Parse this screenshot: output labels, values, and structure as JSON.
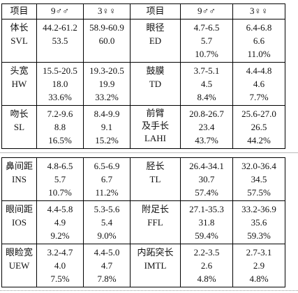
{
  "table": {
    "header": [
      "项目",
      "9♂♂",
      "3♀♀",
      "项目",
      "9♂♂",
      "3♀♀"
    ],
    "blocks": [
      {
        "rows": [
          [
            [
              "体长",
              "SVL"
            ],
            [
              "44.2-61.2",
              "53.5"
            ],
            [
              "58.9-60.9",
              "60.0"
            ],
            [
              "眼径",
              "ED"
            ],
            [
              "4.7-6.5",
              "5.7",
              "10.7%"
            ],
            [
              "6.4-6.8",
              "6.6",
              "11.0%"
            ]
          ],
          [
            [
              "头宽",
              "HW"
            ],
            [
              "15.5-20.5",
              "18.0",
              "33.6%"
            ],
            [
              "19.3-20.5",
              "19.9",
              "33.2%"
            ],
            [
              "鼓膜",
              "TD"
            ],
            [
              "3.7-5.1",
              "4.5",
              "8.4%"
            ],
            [
              "4.4-4.8",
              "4.6",
              "7.7%"
            ]
          ],
          [
            [
              "吻长",
              "SL"
            ],
            [
              "7.2-9.6",
              "8.8",
              "16.5%"
            ],
            [
              "8.4-9.9",
              "9.1",
              "15.2%"
            ],
            [
              "前臂",
              "及手长",
              "LAHI"
            ],
            [
              "20.8-26.7",
              "23.4",
              "43.7%"
            ],
            [
              "25.6-27.0",
              "26.5",
              "44.2%"
            ]
          ]
        ]
      },
      {
        "rows": [
          [
            [
              "鼻间距",
              "INS"
            ],
            [
              "4.8-6.5",
              "5.7",
              "10.7%"
            ],
            [
              "6.5-6.9",
              "6.7",
              "11.2%"
            ],
            [
              "胫长",
              "TL"
            ],
            [
              "26.4-34.1",
              "30.7",
              "57.4%"
            ],
            [
              "32.0-36.4",
              "34.5",
              "57.5%"
            ]
          ],
          [
            [
              "眼间距",
              "IOS"
            ],
            [
              "4.4-5.8",
              "4.9",
              "9.2%"
            ],
            [
              "5.3-5.6",
              "5.4",
              "9.0%"
            ],
            [
              "附足长",
              "FFL"
            ],
            [
              "27.1-35.3",
              "31.8",
              "59.4%"
            ],
            [
              "33.2-36.9",
              "35.6",
              "59.3%"
            ]
          ],
          [
            [
              "眼睑宽",
              "UEW"
            ],
            [
              "3.2-4.7",
              "4.0",
              "7.5%"
            ],
            [
              "4.4-5.0",
              "4.7",
              "7.8%"
            ],
            [
              "内跖突长",
              "IMTL"
            ],
            [
              "2.2-3.5",
              "2.6",
              "4.8%"
            ],
            [
              "2.7-3.1",
              "2.9",
              "4.8%"
            ]
          ]
        ]
      }
    ]
  }
}
